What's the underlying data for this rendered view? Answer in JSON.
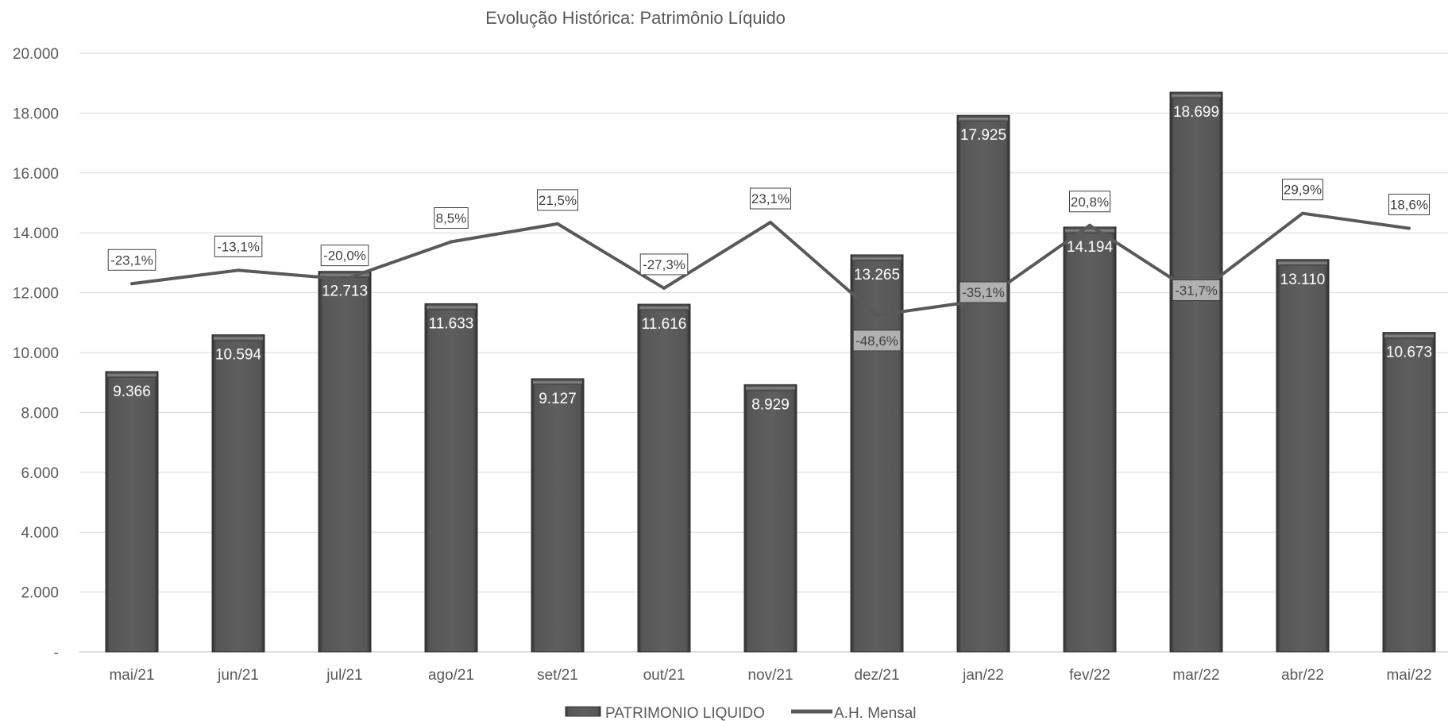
{
  "chart_data": {
    "type": "bar",
    "title": "Evolução Histórica: Patrimônio Líquido",
    "categories": [
      "mai/21",
      "jun/21",
      "jul/21",
      "ago/21",
      "set/21",
      "out/21",
      "nov/21",
      "dez/21",
      "jan/22",
      "fev/22",
      "mar/22",
      "abr/22",
      "mai/22"
    ],
    "ylim": [
      0,
      20000
    ],
    "yticks": [
      0,
      2000,
      4000,
      6000,
      8000,
      10000,
      12000,
      14000,
      16000,
      18000,
      20000
    ],
    "ytick_labels": [
      "-",
      "2.000",
      "4.000",
      "6.000",
      "8.000",
      "10.000",
      "12.000",
      "14.000",
      "16.000",
      "18.000",
      "20.000"
    ],
    "grid": true,
    "legend_position": "bottom",
    "series": [
      {
        "name": "PATRIMONIO LIQUIDO",
        "type": "bar",
        "color": "#595959",
        "values": [
          9366,
          10594,
          12713,
          11633,
          9127,
          11616,
          8929,
          13265,
          17925,
          14194,
          18699,
          13110,
          10673
        ],
        "labels": [
          "9.366",
          "10.594",
          "12.713",
          "11.633",
          "9.127",
          "11.616",
          "8.929",
          "13.265",
          "17.925",
          "14.194",
          "18.699",
          "13.110",
          "10.673"
        ]
      },
      {
        "name": "A.H. Mensal",
        "type": "line",
        "color": "#595959",
        "values": [
          -23.1,
          -13.1,
          -20.0,
          8.5,
          21.5,
          -27.3,
          23.1,
          -48.6,
          -35.1,
          20.8,
          -31.7,
          29.9,
          18.6
        ],
        "labels": [
          "-23,1%",
          "-13,1%",
          "-20,0%",
          "8,5%",
          "21,5%",
          "-27,3%",
          "23,1%",
          "-48,6%",
          "-35,1%",
          "20,8%",
          "-31,7%",
          "29,9%",
          "18,6%"
        ],
        "plotted_y_on_primary_axis": [
          12300,
          12750,
          12450,
          13700,
          14300,
          12150,
          14350,
          11250,
          11750,
          14250,
          11950,
          14650,
          14150
        ]
      }
    ]
  }
}
